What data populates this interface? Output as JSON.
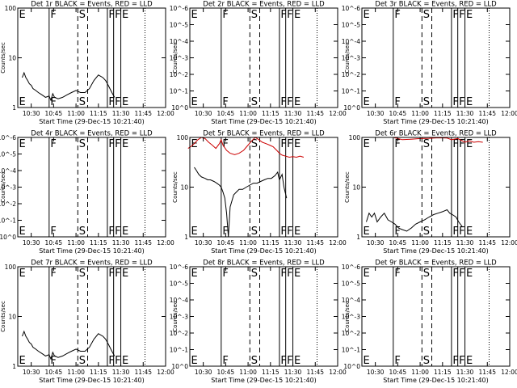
{
  "chart_data": [
    {
      "type": "line",
      "title": "Det 1r BLACK = Events, RED = LLD",
      "xlabel": "Start Time (29-Dec-15 10:21:40)",
      "ylabel": "Counts/sec",
      "yscale": "log",
      "ylim": [
        1,
        100
      ],
      "yticks": [
        {
          "v": 1,
          "label": "1"
        },
        {
          "v": 10,
          "label": "10"
        },
        {
          "v": 100,
          "label": "100"
        }
      ],
      "series": [
        {
          "color": "#000000",
          "x": [
            10.4,
            10.42,
            10.44,
            10.46,
            10.48,
            10.5,
            10.52,
            10.55,
            10.58,
            10.62,
            10.66,
            10.7,
            10.72,
            10.74,
            10.76,
            10.8,
            10.85,
            10.9,
            10.95,
            11.0,
            11.05,
            11.1,
            11.15,
            11.2,
            11.25,
            11.3,
            11.33,
            11.36,
            11.4,
            11.43
          ],
          "y": [
            4,
            5,
            4,
            3.5,
            3,
            2.8,
            2.4,
            2.2,
            2,
            1.8,
            1.6,
            1.7,
            1.4,
            1.9,
            1.6,
            1.5,
            1.6,
            1.8,
            2,
            2.2,
            2,
            2,
            2.4,
            3.5,
            4.5,
            4,
            3.5,
            2.8,
            2,
            1.6
          ]
        }
      ],
      "markers": [
        {
          "x": 10.35,
          "label": "E",
          "style": "solid"
        },
        {
          "x": 10.7,
          "label": "F",
          "style": "solid"
        },
        {
          "x": 11.02,
          "label": "S",
          "style": "dashed"
        },
        {
          "x": 11.13,
          "label": "",
          "style": "dashed"
        },
        {
          "x": 11.35,
          "label": "F",
          "style": "solid"
        },
        {
          "x": 11.42,
          "label": "F",
          "style": "solid"
        },
        {
          "x": 11.5,
          "label": "E",
          "style": "solid"
        },
        {
          "x": 11.77,
          "label": "",
          "style": "dotted"
        }
      ]
    },
    {
      "type": "line",
      "title": "Det 2r BLACK = Events, RED = LLD",
      "xlabel": "Start Time (29-Dec-15 10:21:40)",
      "ylabel": "Counts/sec",
      "yscale": "log",
      "ylim": [
        1,
        1e-06
      ],
      "yticks": [
        {
          "v": 1,
          "label": "10^0"
        },
        {
          "v": 0.1,
          "label": "10^-1"
        },
        {
          "v": 0.01,
          "label": "10^-2"
        },
        {
          "v": 0.001,
          "label": "10^-3"
        },
        {
          "v": 0.0001,
          "label": "10^-4"
        },
        {
          "v": 1e-05,
          "label": "10^-5"
        },
        {
          "v": 1e-06,
          "label": "10^-6"
        }
      ],
      "series": [],
      "markers": [
        {
          "x": 10.35,
          "label": "E",
          "style": "solid"
        },
        {
          "x": 10.7,
          "label": "F",
          "style": "solid"
        },
        {
          "x": 11.02,
          "label": "S",
          "style": "dashed"
        },
        {
          "x": 11.13,
          "label": "",
          "style": "dashed"
        },
        {
          "x": 11.35,
          "label": "F",
          "style": "solid"
        },
        {
          "x": 11.42,
          "label": "F",
          "style": "solid"
        },
        {
          "x": 11.5,
          "label": "E",
          "style": "solid"
        },
        {
          "x": 11.77,
          "label": "",
          "style": "dotted"
        }
      ]
    },
    {
      "type": "line",
      "title": "Det 3r BLACK = Events, RED = LLD",
      "xlabel": "Start Time (29-Dec-15 10:21:40)",
      "ylabel": "Counts/sec",
      "yscale": "log",
      "ylim": [
        1,
        1e-06
      ],
      "yticks": [
        {
          "v": 1,
          "label": "10^0"
        },
        {
          "v": 0.1,
          "label": "10^-1"
        },
        {
          "v": 0.01,
          "label": "10^-2"
        },
        {
          "v": 0.001,
          "label": "10^-3"
        },
        {
          "v": 0.0001,
          "label": "10^-4"
        },
        {
          "v": 1e-05,
          "label": "10^-5"
        },
        {
          "v": 1e-06,
          "label": "10^-6"
        }
      ],
      "series": [],
      "markers": [
        {
          "x": 10.35,
          "label": "E",
          "style": "solid"
        },
        {
          "x": 10.7,
          "label": "F",
          "style": "solid"
        },
        {
          "x": 11.02,
          "label": "S",
          "style": "dashed"
        },
        {
          "x": 11.13,
          "label": "",
          "style": "dashed"
        },
        {
          "x": 11.35,
          "label": "F",
          "style": "solid"
        },
        {
          "x": 11.42,
          "label": "F",
          "style": "solid"
        },
        {
          "x": 11.5,
          "label": "E",
          "style": "solid"
        },
        {
          "x": 11.77,
          "label": "",
          "style": "dotted"
        }
      ]
    },
    {
      "type": "line",
      "title": "Det 4r BLACK = Events, RED = LLD",
      "xlabel": "Start Time (29-Dec-15 10:21:40)",
      "ylabel": "Counts/sec",
      "yscale": "log",
      "ylim": [
        1,
        1e-06
      ],
      "yticks": [
        {
          "v": 1,
          "label": "10^0"
        },
        {
          "v": 0.1,
          "label": "10^-1"
        },
        {
          "v": 0.01,
          "label": "10^-2"
        },
        {
          "v": 0.001,
          "label": "10^-3"
        },
        {
          "v": 0.0001,
          "label": "10^-4"
        },
        {
          "v": 1e-05,
          "label": "10^-5"
        },
        {
          "v": 1e-06,
          "label": "10^-6"
        }
      ],
      "series": [],
      "markers": [
        {
          "x": 10.35,
          "label": "E",
          "style": "solid"
        },
        {
          "x": 10.7,
          "label": "F",
          "style": "solid"
        },
        {
          "x": 11.02,
          "label": "S",
          "style": "dashed"
        },
        {
          "x": 11.13,
          "label": "",
          "style": "dashed"
        },
        {
          "x": 11.35,
          "label": "F",
          "style": "solid"
        },
        {
          "x": 11.42,
          "label": "F",
          "style": "solid"
        },
        {
          "x": 11.5,
          "label": "E",
          "style": "solid"
        },
        {
          "x": 11.77,
          "label": "",
          "style": "dotted"
        }
      ]
    },
    {
      "type": "line",
      "title": "Det 5r BLACK = Events, RED = LLD",
      "xlabel": "Start Time (29-Dec-15 10:21:40)",
      "ylabel": "Counts/sec",
      "yscale": "log",
      "ylim": [
        1,
        100
      ],
      "yticks": [
        {
          "v": 1,
          "label": "1"
        },
        {
          "v": 10,
          "label": "10"
        },
        {
          "v": 100,
          "label": "100"
        }
      ],
      "series": [
        {
          "color": "#000000",
          "x": [
            10.4,
            10.42,
            10.45,
            10.48,
            10.52,
            10.55,
            10.58,
            10.62,
            10.65,
            10.68,
            10.7,
            10.72,
            10.74,
            10.76,
            10.78,
            10.8,
            10.84,
            10.87,
            10.9,
            10.94,
            10.98,
            11.02,
            11.06,
            11.1,
            11.14,
            11.18,
            11.22,
            11.26,
            11.3,
            11.33,
            11.35,
            11.38,
            11.4,
            11.43
          ],
          "y": [
            25,
            22,
            18,
            16,
            15,
            14,
            14,
            13,
            12,
            11,
            10,
            8,
            6,
            3,
            1,
            4,
            7,
            8,
            9,
            9,
            10,
            11,
            12,
            12,
            13,
            14,
            15,
            15,
            17,
            20,
            14,
            18,
            10,
            6
          ]
        },
        {
          "color": "#cc0000",
          "x": [
            10.33,
            10.36,
            10.4,
            10.44,
            10.48,
            10.52,
            10.56,
            10.6,
            10.64,
            10.68,
            10.7,
            10.72,
            10.76,
            10.8,
            10.85,
            10.9,
            10.95,
            11.0,
            11.04,
            11.08,
            11.12,
            11.16,
            11.2,
            11.24,
            11.28,
            11.32,
            11.35,
            11.38,
            11.42,
            11.46,
            11.5,
            11.54,
            11.58,
            11.62
          ],
          "y": [
            60,
            65,
            75,
            90,
            100,
            95,
            80,
            70,
            60,
            75,
            90,
            70,
            55,
            48,
            45,
            48,
            55,
            70,
            85,
            100,
            90,
            80,
            75,
            70,
            65,
            55,
            48,
            44,
            42,
            40,
            41,
            40,
            42,
            40
          ]
        }
      ],
      "markers": [
        {
          "x": 10.35,
          "label": "E",
          "style": "solid"
        },
        {
          "x": 10.7,
          "label": "F",
          "style": "solid"
        },
        {
          "x": 11.02,
          "label": "S",
          "style": "dashed"
        },
        {
          "x": 11.13,
          "label": "",
          "style": "dashed"
        },
        {
          "x": 11.35,
          "label": "F",
          "style": "solid"
        },
        {
          "x": 11.42,
          "label": "F",
          "style": "solid"
        },
        {
          "x": 11.5,
          "label": "E",
          "style": "solid"
        },
        {
          "x": 11.77,
          "label": "",
          "style": "dotted"
        }
      ]
    },
    {
      "type": "line",
      "title": "Det 6r BLACK = Events, RED = LLD",
      "xlabel": "Start Time (29-Dec-15 10:21:40)",
      "ylabel": "Counts/sec",
      "yscale": "log",
      "ylim": [
        1,
        100
      ],
      "yticks": [
        {
          "v": 1,
          "label": "1"
        },
        {
          "v": 10,
          "label": "10"
        },
        {
          "v": 100,
          "label": "100"
        }
      ],
      "series": [
        {
          "color": "#000000",
          "x": [
            10.4,
            10.43,
            10.46,
            10.49,
            10.52,
            10.56,
            10.6,
            10.64,
            10.68,
            10.72,
            10.76,
            10.8,
            10.85,
            10.9,
            10.95,
            11.0,
            11.05,
            11.1,
            11.15,
            11.2,
            11.25,
            11.3,
            11.33,
            11.36,
            11.4,
            11.43,
            11.47
          ],
          "y": [
            2,
            3,
            2.5,
            3,
            2,
            2.5,
            3,
            2.2,
            2,
            1.8,
            1.5,
            1.4,
            1.3,
            1.5,
            1.8,
            2,
            2.2,
            2.5,
            2.8,
            3,
            3.2,
            3.5,
            3,
            2.8,
            2.5,
            2,
            1.6
          ]
        },
        {
          "color": "#cc0000",
          "x": [
            10.7,
            10.75,
            10.8,
            10.9,
            11.0,
            11.1,
            11.2,
            11.3,
            11.35,
            11.42,
            11.5,
            11.55,
            11.6,
            11.65,
            11.7
          ],
          "y": [
            100,
            95,
            90,
            92,
            95,
            96,
            98,
            97,
            90,
            95,
            80,
            85,
            80,
            82,
            80
          ]
        }
      ],
      "markers": [
        {
          "x": 10.35,
          "label": "E",
          "style": "solid"
        },
        {
          "x": 10.7,
          "label": "F",
          "style": "solid"
        },
        {
          "x": 11.02,
          "label": "S",
          "style": "dashed"
        },
        {
          "x": 11.13,
          "label": "",
          "style": "dashed"
        },
        {
          "x": 11.35,
          "label": "F",
          "style": "solid"
        },
        {
          "x": 11.42,
          "label": "F",
          "style": "solid"
        },
        {
          "x": 11.5,
          "label": "E",
          "style": "solid"
        },
        {
          "x": 11.77,
          "label": "",
          "style": "dotted"
        }
      ]
    },
    {
      "type": "line",
      "title": "Det 7r BLACK = Events, RED = LLD",
      "xlabel": "Start Time (29-Dec-15 10:21:40)",
      "ylabel": "Counts/sec",
      "yscale": "log",
      "ylim": [
        1,
        100
      ],
      "yticks": [
        {
          "v": 1,
          "label": "1"
        },
        {
          "v": 10,
          "label": "10"
        },
        {
          "v": 100,
          "label": "100"
        }
      ],
      "series": [
        {
          "color": "#000000",
          "x": [
            10.4,
            10.42,
            10.44,
            10.46,
            10.48,
            10.5,
            10.52,
            10.55,
            10.58,
            10.62,
            10.66,
            10.7,
            10.72,
            10.74,
            10.76,
            10.8,
            10.85,
            10.9,
            10.95,
            11.0,
            11.05,
            11.1,
            11.15,
            11.2,
            11.25,
            11.3,
            11.33,
            11.36,
            11.4,
            11.43
          ],
          "y": [
            4,
            5,
            4,
            3.5,
            3,
            2.8,
            2.4,
            2.2,
            2,
            1.8,
            1.6,
            1.7,
            1.4,
            1.9,
            1.6,
            1.5,
            1.6,
            1.8,
            2,
            2.2,
            2,
            2,
            2.4,
            3.5,
            4.5,
            4,
            3.5,
            2.8,
            2,
            1.6
          ]
        }
      ],
      "markers": [
        {
          "x": 10.35,
          "label": "E",
          "style": "solid"
        },
        {
          "x": 10.7,
          "label": "F",
          "style": "solid"
        },
        {
          "x": 11.02,
          "label": "S",
          "style": "dashed"
        },
        {
          "x": 11.13,
          "label": "",
          "style": "dashed"
        },
        {
          "x": 11.35,
          "label": "F",
          "style": "solid"
        },
        {
          "x": 11.42,
          "label": "F",
          "style": "solid"
        },
        {
          "x": 11.5,
          "label": "E",
          "style": "solid"
        },
        {
          "x": 11.77,
          "label": "",
          "style": "dotted"
        }
      ]
    },
    {
      "type": "line",
      "title": "Det 8r BLACK = Events, RED = LLD",
      "xlabel": "Start Time (29-Dec-15 10:21:40)",
      "ylabel": "Counts/sec",
      "yscale": "log",
      "ylim": [
        1,
        1e-06
      ],
      "yticks": [
        {
          "v": 1,
          "label": "10^0"
        },
        {
          "v": 0.1,
          "label": "10^-1"
        },
        {
          "v": 0.01,
          "label": "10^-2"
        },
        {
          "v": 0.001,
          "label": "10^-3"
        },
        {
          "v": 0.0001,
          "label": "10^-4"
        },
        {
          "v": 1e-05,
          "label": "10^-5"
        },
        {
          "v": 1e-06,
          "label": "10^-6"
        }
      ],
      "series": [],
      "markers": [
        {
          "x": 10.35,
          "label": "E",
          "style": "solid"
        },
        {
          "x": 10.7,
          "label": "F",
          "style": "solid"
        },
        {
          "x": 11.02,
          "label": "S",
          "style": "dashed"
        },
        {
          "x": 11.13,
          "label": "",
          "style": "dashed"
        },
        {
          "x": 11.35,
          "label": "F",
          "style": "solid"
        },
        {
          "x": 11.42,
          "label": "F",
          "style": "solid"
        },
        {
          "x": 11.5,
          "label": "E",
          "style": "solid"
        },
        {
          "x": 11.77,
          "label": "",
          "style": "dotted"
        }
      ]
    },
    {
      "type": "line",
      "title": "Det 9r BLACK = Events, RED = LLD",
      "xlabel": "Start Time (29-Dec-15 10:21:40)",
      "ylabel": "Counts/sec",
      "yscale": "log",
      "ylim": [
        1,
        1e-06
      ],
      "yticks": [
        {
          "v": 1,
          "label": "10^0"
        },
        {
          "v": 0.1,
          "label": "10^-1"
        },
        {
          "v": 0.01,
          "label": "10^-2"
        },
        {
          "v": 0.001,
          "label": "10^-3"
        },
        {
          "v": 0.0001,
          "label": "10^-4"
        },
        {
          "v": 1e-05,
          "label": "10^-5"
        },
        {
          "v": 1e-06,
          "label": "10^-6"
        }
      ],
      "series": [],
      "markers": [
        {
          "x": 10.35,
          "label": "E",
          "style": "solid"
        },
        {
          "x": 10.7,
          "label": "F",
          "style": "solid"
        },
        {
          "x": 11.02,
          "label": "S",
          "style": "dashed"
        },
        {
          "x": 11.13,
          "label": "",
          "style": "dashed"
        },
        {
          "x": 11.35,
          "label": "F",
          "style": "solid"
        },
        {
          "x": 11.42,
          "label": "F",
          "style": "solid"
        },
        {
          "x": 11.5,
          "label": "E",
          "style": "solid"
        },
        {
          "x": 11.77,
          "label": "",
          "style": "dotted"
        }
      ]
    }
  ],
  "x_axis": {
    "xlim": [
      10.35,
      12.0
    ],
    "ticks": [
      {
        "v": 10.5,
        "label": "10:30"
      },
      {
        "v": 10.75,
        "label": "10:45"
      },
      {
        "v": 11.0,
        "label": "11:00"
      },
      {
        "v": 11.25,
        "label": "11:15"
      },
      {
        "v": 11.5,
        "label": "11:30"
      },
      {
        "v": 11.75,
        "label": "11:45"
      },
      {
        "v": 12.0,
        "label": "12:00"
      }
    ]
  }
}
